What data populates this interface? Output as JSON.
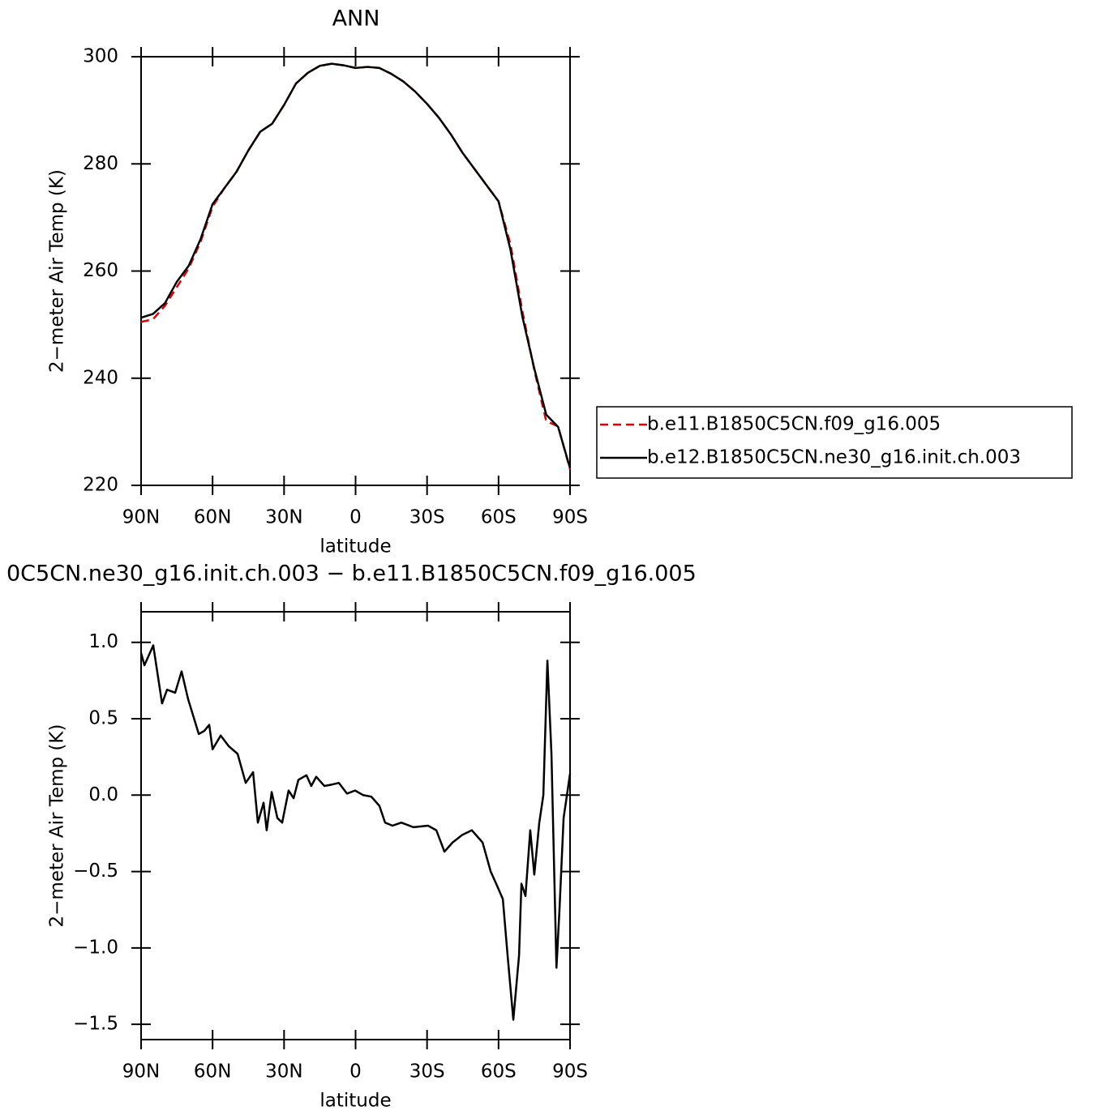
{
  "chart_data": [
    {
      "type": "line",
      "title": "ANN",
      "ylabel": "2−meter Air Temp (K)",
      "xlabel": "latitude",
      "x": [
        90,
        85,
        80,
        75,
        70,
        65,
        60,
        55,
        50,
        45,
        40,
        35,
        30,
        25,
        20,
        15,
        10,
        5,
        0,
        -5,
        -10,
        -15,
        -20,
        -25,
        -30,
        -35,
        -40,
        -45,
        -50,
        -55,
        -60,
        -65,
        -70,
        -75,
        -80,
        -85,
        -90
      ],
      "series": [
        {
          "name": "b.e11.B1850C5CN.f09_g16.005",
          "color": "#e00000",
          "style": "dashed",
          "values": [
            250.5,
            251,
            253.5,
            257,
            260.5,
            265.5,
            272,
            275.5,
            278.5,
            282.5,
            286,
            287.5,
            291,
            295,
            297,
            298.3,
            298.7,
            298.4,
            297.9,
            298.1,
            297.9,
            296.8,
            295.4,
            293.5,
            291.2,
            288.6,
            285.5,
            282,
            279,
            276,
            273,
            265,
            252.5,
            241.5,
            232,
            231,
            223
          ]
        },
        {
          "name": "b.e12.B1850C5CN.ne30_g16.init.ch.003",
          "color": "#000000",
          "style": "solid",
          "values": [
            251.3,
            252,
            254,
            258,
            261,
            266,
            272.5,
            275.5,
            278.5,
            282.5,
            286,
            287.5,
            291,
            295,
            297,
            298.3,
            298.7,
            298.4,
            297.9,
            298.1,
            297.9,
            296.8,
            295.4,
            293.5,
            291.2,
            288.6,
            285.5,
            282,
            279,
            276,
            273,
            264,
            251.5,
            241.8,
            233.2,
            230.9,
            223.2
          ]
        }
      ],
      "xlim": [
        90,
        -90
      ],
      "xticks": [
        {
          "value": 90,
          "label": "90N"
        },
        {
          "value": 60,
          "label": "60N"
        },
        {
          "value": 30,
          "label": "30N"
        },
        0,
        {
          "value": -30,
          "label": "30S"
        },
        {
          "value": -60,
          "label": "60S"
        },
        {
          "value": -90,
          "label": "90S"
        }
      ],
      "ylim": [
        220,
        300
      ],
      "yticks": [
        220,
        240,
        260,
        280,
        300
      ],
      "legend": "right"
    },
    {
      "type": "line",
      "title": "0C5CN.ne30_g16.init.ch.003 − b.e11.B1850C5CN.f09_g16.005",
      "ylabel": "2−meter Air Temp (K)",
      "xlabel": "latitude",
      "x": [
        90,
        88.6,
        84.9,
        81.2,
        79.1,
        75.7,
        73,
        70.3,
        65.8,
        63.5,
        61.4,
        60,
        56.6,
        53.2,
        49.5,
        46.1,
        43,
        41,
        38.6,
        37.3,
        35.2,
        32.8,
        30.8,
        28.1,
        26,
        24,
        20.6,
        18.6,
        16.5,
        13.1,
        9.7,
        7,
        3.6,
        0.2,
        -3.2,
        -6.6,
        -10,
        -12.4,
        -15.5,
        -19.2,
        -24.3,
        -30.4,
        -33.9,
        -37.3,
        -40.7,
        -44.8,
        -48.8,
        -53.3,
        -56.7,
        -59,
        -61.8,
        -63.8,
        -66.2,
        -68.6,
        -69.6,
        -71.3,
        -73.3,
        -75,
        -77.1,
        -78.8,
        -80.5,
        -82.2,
        -84.3,
        -85.6,
        -87.3,
        -90
      ],
      "series": [
        {
          "color": "#000000",
          "style": "solid",
          "values": [
            0.93,
            0.85,
            0.98,
            0.6,
            0.69,
            0.67,
            0.81,
            0.63,
            0.4,
            0.42,
            0.46,
            0.3,
            0.39,
            0.32,
            0.27,
            0.08,
            0.15,
            -0.18,
            -0.05,
            -0.23,
            0.02,
            -0.15,
            -0.18,
            0.03,
            -0.02,
            0.1,
            0.13,
            0.06,
            0.12,
            0.06,
            0.07,
            0.08,
            0.01,
            0.03,
            0,
            -0.01,
            -0.07,
            -0.18,
            -0.2,
            -0.18,
            -0.21,
            -0.2,
            -0.23,
            -0.37,
            -0.31,
            -0.26,
            -0.23,
            -0.31,
            -0.5,
            -0.58,
            -0.68,
            -1.05,
            -1.47,
            -1.05,
            -0.58,
            -0.66,
            -0.23,
            -0.52,
            -0.18,
            0,
            0.88,
            0.27,
            -1.13,
            -0.74,
            -0.15,
            0.14
          ]
        }
      ],
      "xlim": [
        90,
        -90
      ],
      "xticks": [
        {
          "value": 90,
          "label": "90N"
        },
        {
          "value": 60,
          "label": "60N"
        },
        {
          "value": 30,
          "label": "30N"
        },
        0,
        {
          "value": -30,
          "label": "30S"
        },
        {
          "value": -60,
          "label": "60S"
        },
        {
          "value": -90,
          "label": "90S"
        }
      ],
      "ylim": [
        -1.6,
        1.2
      ],
      "yticks": [
        {
          "value": -1.5,
          "label": "−1.5"
        },
        {
          "value": -1,
          "label": "−1.0"
        },
        {
          "value": -0.5,
          "label": "−0.5"
        },
        {
          "value": 0,
          "label": "0.0"
        },
        0.5,
        {
          "value": 1,
          "label": "1.0"
        }
      ]
    }
  ]
}
